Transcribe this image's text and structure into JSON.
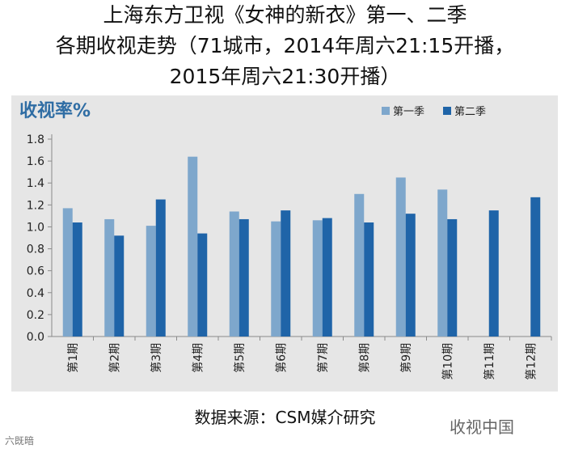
{
  "title_lines": [
    "上海东方卫视《女神的新衣》第一、二季",
    "各期收视走势（71城市，2014年周六21:15开播，",
    "2015年周六21:30开播）"
  ],
  "source": "数据来源：CSM媒介研究",
  "watermark_left": "六既暗",
  "watermark_right": "收视中国",
  "colors": {
    "series1": "#7ea7cc",
    "series2": "#1f64a8",
    "ylabel": "#2f6da4",
    "panel": "#e6e6e6"
  },
  "chart_data": {
    "type": "bar",
    "ylabel": "收视率%",
    "ylim": [
      0,
      1.8
    ],
    "yticks": [
      0.0,
      0.2,
      0.4,
      0.6,
      0.8,
      1.0,
      1.2,
      1.4,
      1.6,
      1.8
    ],
    "grid": false,
    "legend_position": "top-right",
    "categories": [
      "第1期",
      "第2期",
      "第3期",
      "第4期",
      "第5期",
      "第6期",
      "第7期",
      "第8期",
      "第9期",
      "第10期",
      "第11期",
      "第12期"
    ],
    "series": [
      {
        "name": "第一季",
        "values": [
          1.17,
          1.07,
          1.01,
          1.64,
          1.14,
          1.05,
          1.06,
          1.3,
          1.45,
          1.34,
          null,
          null
        ]
      },
      {
        "name": "第二季",
        "values": [
          1.04,
          0.92,
          1.25,
          0.94,
          1.07,
          1.15,
          1.08,
          1.04,
          1.12,
          1.07,
          1.15,
          1.27
        ]
      }
    ]
  }
}
